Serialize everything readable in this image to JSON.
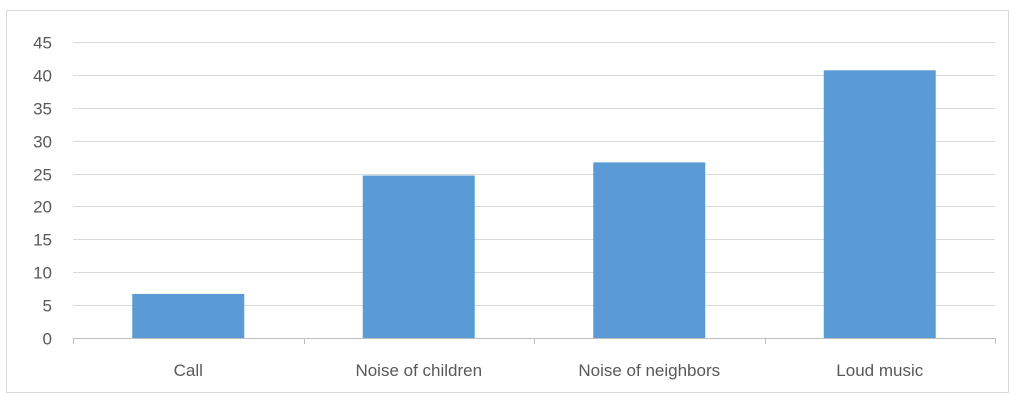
{
  "chart_data": {
    "type": "bar",
    "categories": [
      "Call",
      "Noise of children",
      "Noise of neighbors",
      "Loud music"
    ],
    "values": [
      6.7,
      24.7,
      26.7,
      40.7
    ],
    "ylim": [
      0,
      45
    ],
    "yticks": [
      0,
      5,
      10,
      15,
      20,
      25,
      30,
      35,
      40,
      45
    ],
    "grid": true,
    "legend": "none",
    "colors": {
      "bar": "#5B9BD5",
      "grid": "#D9D9D9",
      "axis": "#BFBFBF",
      "text": "#595959"
    }
  }
}
